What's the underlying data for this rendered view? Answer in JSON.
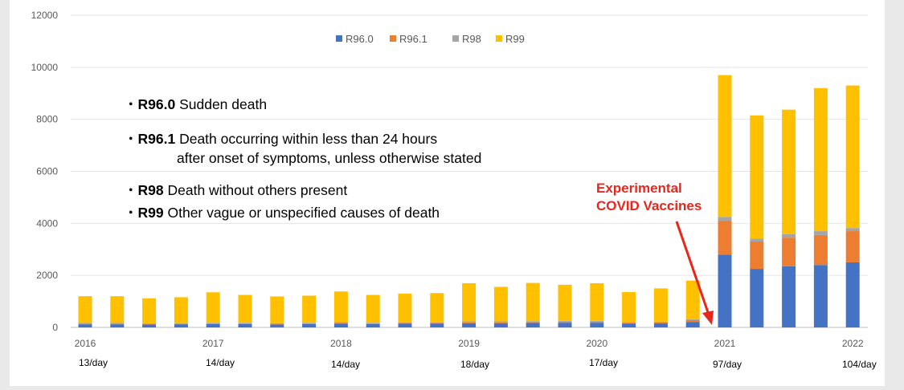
{
  "chart_data": {
    "type": "bar",
    "stacked": true,
    "ylim": [
      0,
      12000
    ],
    "yticks": [
      0,
      2000,
      4000,
      6000,
      8000,
      10000,
      12000
    ],
    "grid": true,
    "legend_position": "top-center",
    "x_year_labels": [
      "2016",
      "2017",
      "2018",
      "2019",
      "2020",
      "2021",
      "2022"
    ],
    "daily_rates": [
      "13/day",
      "14/day",
      "14/day",
      "18/day",
      "17/day",
      "97/day",
      "104/day"
    ],
    "series": [
      {
        "name": "R96.0",
        "color": "#4472c4",
        "values": [
          120,
          120,
          110,
          120,
          130,
          130,
          110,
          130,
          140,
          130,
          140,
          140,
          160,
          160,
          170,
          180,
          180,
          150,
          160,
          200,
          2800,
          2250,
          2350,
          2400,
          2500
        ]
      },
      {
        "name": "R96.1",
        "color": "#ed7d31",
        "values": [
          30,
          30,
          25,
          25,
          30,
          30,
          30,
          30,
          40,
          30,
          30,
          30,
          40,
          40,
          40,
          40,
          40,
          30,
          40,
          80,
          1300,
          1050,
          1100,
          1150,
          1200
        ]
      },
      {
        "name": "R98",
        "color": "#a5a5a5",
        "values": [
          20,
          20,
          20,
          20,
          20,
          20,
          20,
          20,
          20,
          20,
          20,
          20,
          30,
          30,
          30,
          30,
          30,
          20,
          20,
          30,
          150,
          110,
          130,
          150,
          120
        ]
      },
      {
        "name": "R99",
        "color": "#ffc000",
        "values": [
          1030,
          1030,
          965,
          995,
          1170,
          1070,
          1030,
          1040,
          1180,
          1070,
          1110,
          1130,
          1470,
          1330,
          1470,
          1390,
          1450,
          1160,
          1280,
          1490,
          5450,
          4740,
          4790,
          5500,
          5480
        ]
      }
    ]
  },
  "definitions": [
    {
      "code": "R96.0",
      "text": "Sudden death",
      "text2": ""
    },
    {
      "code": "R96.1",
      "text": "Death occurring within less than 24 hours",
      "text2": "after onset of symptoms, unless otherwise stated"
    },
    {
      "code": "R98",
      "text": "Death without others present",
      "text2": ""
    },
    {
      "code": "R99",
      "text": "Other vague or unspecified causes of death",
      "text2": ""
    }
  ],
  "annotation": {
    "line1": "Experimental",
    "line2": "COVID Vaccines",
    "color": "#e8261c"
  }
}
